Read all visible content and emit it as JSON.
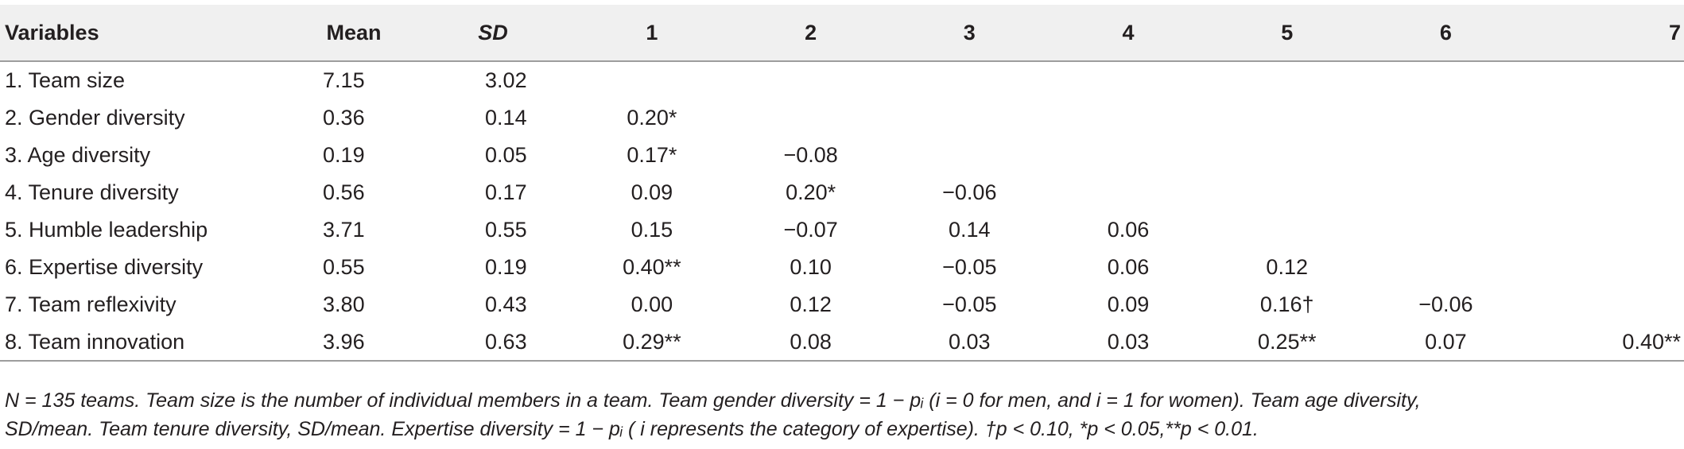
{
  "table": {
    "headers": [
      "Variables",
      "Mean",
      "SD",
      "1",
      "2",
      "3",
      "4",
      "5",
      "6",
      "7"
    ],
    "rows": [
      {
        "variable": "1. Team size",
        "mean": "7.15",
        "sd": "3.02",
        "c1": "",
        "c2": "",
        "c3": "",
        "c4": "",
        "c5": "",
        "c6": "",
        "c7": ""
      },
      {
        "variable": "2. Gender diversity",
        "mean": "0.36",
        "sd": "0.14",
        "c1": "0.20*",
        "c2": "",
        "c3": "",
        "c4": "",
        "c5": "",
        "c6": "",
        "c7": ""
      },
      {
        "variable": "3. Age diversity",
        "mean": "0.19",
        "sd": "0.05",
        "c1": "0.17*",
        "c2": "−0.08",
        "c3": "",
        "c4": "",
        "c5": "",
        "c6": "",
        "c7": ""
      },
      {
        "variable": "4. Tenure diversity",
        "mean": "0.56",
        "sd": "0.17",
        "c1": "0.09",
        "c2": "0.20*",
        "c3": "−0.06",
        "c4": "",
        "c5": "",
        "c6": "",
        "c7": ""
      },
      {
        "variable": "5. Humble leadership",
        "mean": "3.71",
        "sd": "0.55",
        "c1": "0.15",
        "c2": "−0.07",
        "c3": "0.14",
        "c4": "0.06",
        "c5": "",
        "c6": "",
        "c7": ""
      },
      {
        "variable": "6. Expertise diversity",
        "mean": "0.55",
        "sd": "0.19",
        "c1": "0.40**",
        "c2": "0.10",
        "c3": "−0.05",
        "c4": "0.06",
        "c5": "0.12",
        "c6": "",
        "c7": ""
      },
      {
        "variable": "7. Team reflexivity",
        "mean": "3.80",
        "sd": "0.43",
        "c1": "0.00",
        "c2": "0.12",
        "c3": "−0.05",
        "c4": "0.09",
        "c5": "0.16†",
        "c6": "−0.06",
        "c7": ""
      },
      {
        "variable": "8. Team innovation",
        "mean": "3.96",
        "sd": "0.63",
        "c1": "0.29**",
        "c2": "0.08",
        "c3": "0.03",
        "c4": "0.03",
        "c5": "0.25**",
        "c6": "0.07",
        "c7": "0.40**"
      }
    ]
  },
  "note": {
    "line1": "N = 135 teams. Team size is the number of individual members in a team. Team gender diversity = 1 − pᵢ (i = 0 for men, and i = 1 for women). Team age diversity,",
    "line2": "SD/mean. Team tenure diversity, SD/mean. Expertise diversity = 1 − pᵢ ( i represents the category of expertise). †p < 0.10, *p < 0.05,**p < 0.01."
  }
}
